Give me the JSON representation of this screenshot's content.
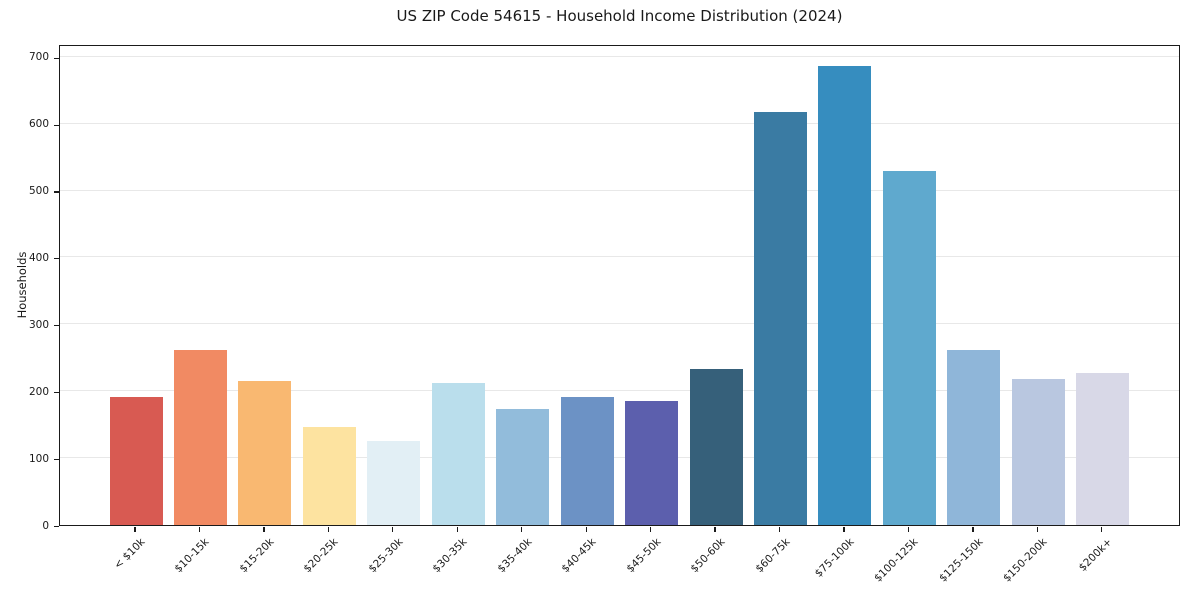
{
  "figure": {
    "title": "US ZIP Code 54615 - Household Income Distribution (2024)"
  },
  "chart_data": {
    "type": "bar",
    "title": "US ZIP Code 54615 - Household Income Distribution (2024)",
    "xlabel": "",
    "ylabel": "Households",
    "categories": [
      "< $10k",
      "$10-15k",
      "$15-20k",
      "$20-25k",
      "$25-30k",
      "$30-35k",
      "$35-40k",
      "$40-45k",
      "$45-50k",
      "$50-60k",
      "$60-75k",
      "$75-100k",
      "$100-125k",
      "$125-150k",
      "$150-200k",
      "$200k+"
    ],
    "values": [
      191,
      261,
      215,
      147,
      125,
      213,
      173,
      192,
      186,
      233,
      618,
      686,
      529,
      261,
      219,
      227
    ],
    "bar_colors": [
      "#d85a52",
      "#f18a63",
      "#f9b871",
      "#fde3a0",
      "#e2eff5",
      "#badeec",
      "#92bcdb",
      "#6c92c5",
      "#5c5fad",
      "#36607a",
      "#3a7ba3",
      "#368dbf",
      "#5fa9ce",
      "#8fb6d9",
      "#b9c7e0",
      "#d8d8e7"
    ],
    "yticks": [
      0,
      100,
      200,
      300,
      400,
      500,
      600,
      700
    ],
    "ylim": [
      0,
      720
    ],
    "grid": "horizontal-y",
    "grid_color": "#e8e8e8",
    "axis_color": "#1a1a1a",
    "text_color": "#1a1a1a",
    "background": "#ffffff",
    "legend": "none",
    "x_tick_rotation_deg": 45
  }
}
